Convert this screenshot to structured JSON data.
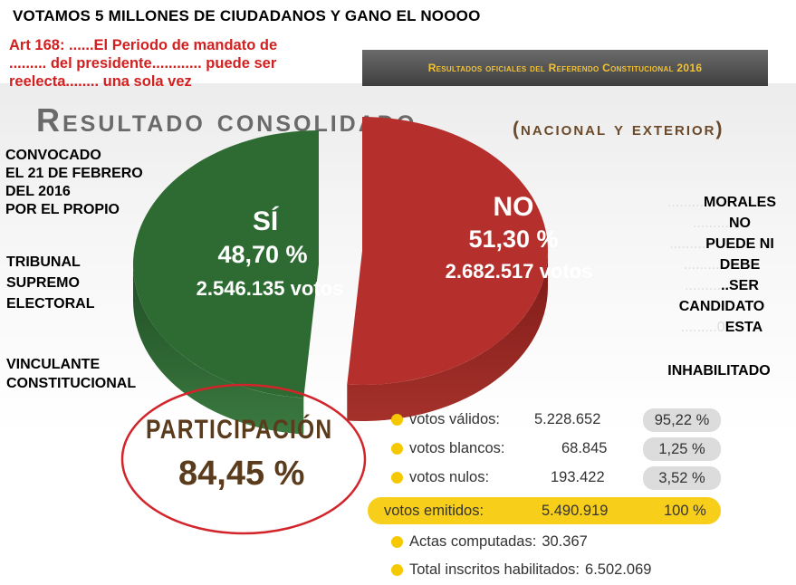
{
  "top_title": "VOTAMOS 5 MILLONES DE CIUDADANOS Y GANO EL NOOOO",
  "article": {
    "line1": "Art 168: ......El Periodo de mandato de",
    "line2": "......... del presidente............ puede ser",
    "line3": "reelecta........ una sola vez"
  },
  "official_banner": "Resultados oficiales del Referendo Constitucional 2016",
  "header": {
    "main": "Resultado consolidado",
    "sub": "(nacional y exterior)"
  },
  "left_notes": {
    "block1": [
      "CONVOCADO",
      "EL 21 DE FEBRERO",
      "DEL 2016",
      "POR EL PROPIO"
    ],
    "block2": [
      "TRIBUNAL",
      "SUPREMO",
      "ELECTORAL"
    ],
    "block3": [
      "VINCULANTE",
      "CONSTITUCIONAL"
    ]
  },
  "right_notes": {
    "lines": [
      {
        "prefix": ".........",
        "text": "MORALES"
      },
      {
        "prefix": ".........",
        "text": "NO"
      },
      {
        "prefix": ".........",
        "text": "PUEDE NI"
      },
      {
        "prefix": ".........",
        "text": "DEBE"
      },
      {
        "prefix": ".........",
        "text": "..SER"
      },
      {
        "prefix": "",
        "text": "CANDIDATO"
      },
      {
        "prefix": ".........0",
        "text": "ESTA"
      }
    ],
    "last": "INHABILITADO"
  },
  "chart_data": {
    "type": "pie",
    "slices": [
      {
        "label": "SÍ",
        "percent_label": "48,70 %",
        "votes_label": "2.546.135 votos",
        "value": 48.7,
        "color": "#2e6b33"
      },
      {
        "label": "NO",
        "percent_label": "51,30 %",
        "votes_label": "2.682.517 votos",
        "value": 51.3,
        "color": "#b5302c"
      }
    ]
  },
  "participation": {
    "label": "PARTICIPACIÓN",
    "value": "84,45 %"
  },
  "stats": [
    {
      "label": "votos válidos:",
      "value": "5.228.652",
      "pct": "95,22 %"
    },
    {
      "label": "votos blancos:",
      "value": "68.845",
      "pct": "1,25 %"
    },
    {
      "label": "votos nulos:",
      "value": "193.422",
      "pct": "3,52 %"
    }
  ],
  "emitidos": {
    "label": "votos emitidos:",
    "value": "5.490.919",
    "pct": "100 %"
  },
  "extra": [
    {
      "label": "Actas computadas:",
      "value": "30.367"
    },
    {
      "label": "Total inscritos habilitados:",
      "value": "6.502.069"
    }
  ]
}
